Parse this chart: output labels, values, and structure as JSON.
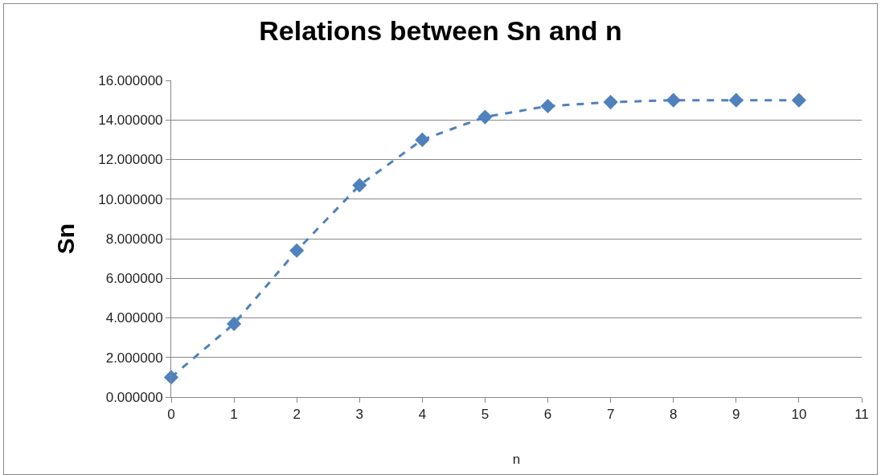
{
  "chart_data": {
    "type": "line",
    "title": "Relations between Sn and n",
    "xlabel": "n",
    "ylabel": "Sn",
    "x": [
      0,
      1,
      2,
      3,
      4,
      5,
      6,
      7,
      8,
      9,
      10
    ],
    "series": [
      {
        "color": "#4f81bd",
        "values": [
          1.0,
          3.7,
          7.4,
          10.7,
          13.0,
          14.15,
          14.7,
          14.9,
          15.0,
          15.0,
          15.0
        ]
      }
    ],
    "xlim": [
      0,
      11
    ],
    "xticks": [
      0,
      1,
      2,
      3,
      4,
      5,
      6,
      7,
      8,
      9,
      10,
      11
    ],
    "ylim": [
      0,
      16
    ],
    "yticks": [
      {
        "value": 0,
        "label": "0.000000"
      },
      {
        "value": 2,
        "label": "2.000000"
      },
      {
        "value": 4,
        "label": "4.000000"
      },
      {
        "value": 6,
        "label": "6.000000"
      },
      {
        "value": 8,
        "label": "8.000000"
      },
      {
        "value": 10,
        "label": "10.000000"
      },
      {
        "value": 12,
        "label": "12.000000"
      },
      {
        "value": 14,
        "label": "14.000000"
      },
      {
        "value": 16,
        "label": "16.000000"
      }
    ],
    "grid": "y",
    "legend": false,
    "marker": "diamond",
    "line_style": "dashed"
  }
}
